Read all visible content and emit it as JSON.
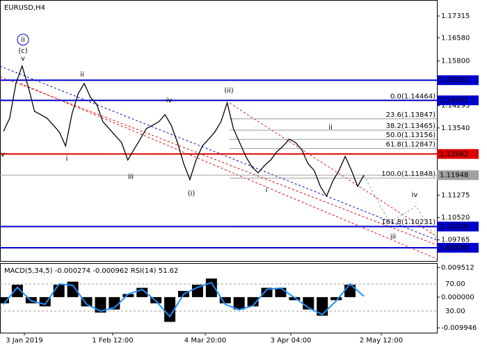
{
  "chart_data": [
    {
      "type": "line",
      "title": "EURUSD,H4",
      "color": "#000000",
      "values": [
        1.1343,
        1.1387,
        1.1504,
        1.1563,
        1.1492,
        1.141,
        1.1399,
        1.1387,
        1.1364,
        1.134,
        1.1293,
        1.1399,
        1.1469,
        1.1504,
        1.1457,
        1.1434,
        1.1375,
        1.1352,
        1.1328,
        1.1305,
        1.1246,
        1.1281,
        1.1316,
        1.1352,
        1.1363,
        1.1375,
        1.1399,
        1.1363,
        1.1305,
        1.1234,
        1.118,
        1.1246,
        1.1293,
        1.1316,
        1.134,
        1.1375,
        1.1439,
        1.1352,
        1.1305,
        1.1258,
        1.1222,
        1.1203,
        1.1227,
        1.1246,
        1.1274,
        1.1293,
        1.1316,
        1.1305,
        1.1281,
        1.1234,
        1.1211,
        1.1157,
        1.1124,
        1.1175,
        1.1211,
        1.1258,
        1.1211,
        1.1157,
        1.1195
      ],
      "ylim": [
        1.09054,
        1.17855
      ],
      "yticks": [
        1.17315,
        {
          "value": 1.1658,
          "label": "1.16580"
        },
        {
          "value": 1.158,
          "label": "1.15800"
        },
        1.14295,
        {
          "value": 1.1354,
          "label": "1.13540"
        },
        1.11275,
        {
          "value": 1.1052,
          "label": "1.10520"
        },
        1.09765
      ],
      "levels": [
        {
          "value": 1.15151,
          "color": "#0000cc"
        },
        {
          "value": 1.14471,
          "color": "#0000cc"
        },
        {
          "value": 1.12662,
          "color": "#dd0000"
        },
        {
          "value": 1.10216,
          "color": "#0000cc"
        },
        {
          "value": 1.095,
          "label": "1.09500",
          "color": "#0000cc"
        },
        {
          "value": 1.11948,
          "color": "#a0a0a0"
        }
      ],
      "fibonacci": [
        {
          "value": 1.14464,
          "label": "0.0(1.14464)"
        },
        {
          "value": 1.13847,
          "label": "23.6(1.13847)"
        },
        {
          "value": 1.13465,
          "label": "38.2(1.13465)"
        },
        {
          "value": 1.13156,
          "label": "50.0(1.13156)"
        },
        {
          "value": 1.12847,
          "label": "61.8(1.12847)"
        },
        {
          "value": 1.11848,
          "label": "100.0(1.11848)"
        },
        {
          "value": 1.10231,
          "label": "161.8(1.10231)"
        }
      ],
      "annotations": [
        {
          "text": "ii",
          "color": "#0000cc"
        },
        {
          "text": "(c)",
          "color": "#dd0000"
        },
        {
          "text": "v",
          "color": "#777777"
        },
        {
          "text": "ii",
          "color": "#777777"
        },
        {
          "text": "i",
          "color": "#777777"
        },
        {
          "text": "iii",
          "color": "#777777"
        },
        {
          "text": "iv",
          "color": "#777777"
        },
        {
          "text": "(ii)",
          "color": "#dd0000"
        },
        {
          "text": "(i)",
          "color": "#dd0000"
        },
        {
          "text": "i",
          "color": "#777777"
        },
        {
          "text": "ii",
          "color": "#777777"
        },
        {
          "text": "iv",
          "color": "#777777"
        },
        {
          "text": "iii",
          "color": "#777777"
        },
        {
          "text": "v",
          "color": "#777777"
        }
      ],
      "xlabels": [
        "3 Jan 2019",
        "1 Feb 12:00",
        "4 Mar 20:00",
        "3 Apr 04:00",
        "2 May 12:00"
      ]
    },
    {
      "type": "bar",
      "title": "MACD(5,34,5) -0.000274 -0.000962 RSI(14) 51.62",
      "series": [
        {
          "name": "MACD",
          "color": "#000000",
          "values": [
            -0.002,
            0.004,
            -0.002,
            -0.003,
            0.004,
            0.005,
            -0.003,
            -0.005,
            -0.004,
            0.001,
            0.003,
            -0.002,
            -0.008,
            0.002,
            0.004,
            0.006,
            -0.002,
            -0.004,
            -0.003,
            0.003,
            0.003,
            -0.001,
            -0.004,
            -0.006,
            -0.001,
            0.004,
            0.0
          ]
        },
        {
          "name": "RSI",
          "color": "#1e90ff",
          "axis": "y2",
          "values": [
            40,
            65,
            45,
            40,
            70,
            68,
            40,
            30,
            35,
            55,
            62,
            45,
            22,
            55,
            65,
            72,
            40,
            32,
            38,
            62,
            64,
            50,
            35,
            25,
            45,
            70,
            52
          ]
        }
      ],
      "ylim": [
        -0.0115,
        0.011
      ],
      "yticks": [
        0.009512,
        {
          "value": 0,
          "label": "0.000000"
        },
        -0.009946
      ],
      "y2lim": [
        -1.8,
        100.8
      ],
      "y2ticks": [
        {
          "value": 70,
          "label": "70.00"
        },
        {
          "value": 30,
          "label": "30.00"
        }
      ]
    }
  ]
}
